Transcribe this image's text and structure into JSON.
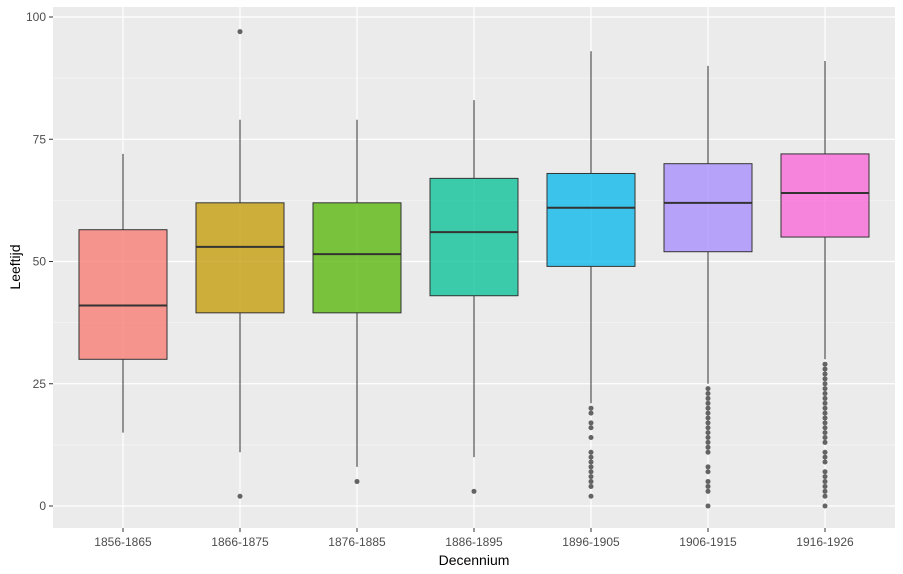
{
  "chart_data": {
    "type": "boxplot",
    "title": "",
    "xlabel": "Decennium",
    "ylabel": "Leeftijd",
    "ylim": [
      -4,
      103
    ],
    "yticks": [
      0,
      25,
      50,
      75,
      100
    ],
    "grid": true,
    "legend": "none",
    "categories": [
      "1856-1865",
      "1866-1875",
      "1876-1885",
      "1886-1895",
      "1896-1905",
      "1906-1915",
      "1916-1926"
    ],
    "colors": [
      "#F8766D",
      "#C49A00",
      "#53B400",
      "#00C094",
      "#00B6EB",
      "#A58AFF",
      "#FB61D7"
    ],
    "boxes": [
      {
        "category": "1856-1865",
        "whisker_low": 15,
        "q1": 30,
        "median": 41,
        "q3": 56.5,
        "whisker_high": 72,
        "outliers": []
      },
      {
        "category": "1866-1875",
        "whisker_low": 11,
        "q1": 39.5,
        "median": 53,
        "q3": 62,
        "whisker_high": 79,
        "outliers": [
          2,
          97
        ]
      },
      {
        "category": "1876-1885",
        "whisker_low": 8,
        "q1": 39.5,
        "median": 51.5,
        "q3": 62,
        "whisker_high": 79,
        "outliers": [
          5
        ]
      },
      {
        "category": "1886-1895",
        "whisker_low": 10,
        "q1": 43,
        "median": 56,
        "q3": 67,
        "whisker_high": 83,
        "outliers": [
          3
        ]
      },
      {
        "category": "1896-1905",
        "whisker_low": 21,
        "q1": 49,
        "median": 61,
        "q3": 68,
        "whisker_high": 93,
        "outliers": [
          20,
          19,
          17,
          16,
          14,
          11,
          10,
          9,
          8,
          7,
          6,
          5,
          4,
          2
        ]
      },
      {
        "category": "1906-1915",
        "whisker_low": 25,
        "q1": 52,
        "median": 62,
        "q3": 70,
        "whisker_high": 90,
        "outliers": [
          24,
          23,
          22,
          21,
          20,
          19,
          18,
          17,
          16,
          15,
          14,
          13,
          12,
          11,
          8,
          7,
          5,
          4,
          3,
          0
        ]
      },
      {
        "category": "1916-1926",
        "whisker_low": 30,
        "q1": 55,
        "median": 64,
        "q3": 72,
        "whisker_high": 91,
        "outliers": [
          29,
          28,
          27,
          26,
          25,
          24,
          23,
          22,
          21,
          20,
          19,
          18,
          17,
          16,
          15,
          14,
          13,
          11,
          10,
          9,
          7,
          6,
          5,
          4,
          3,
          2,
          0
        ]
      }
    ]
  }
}
